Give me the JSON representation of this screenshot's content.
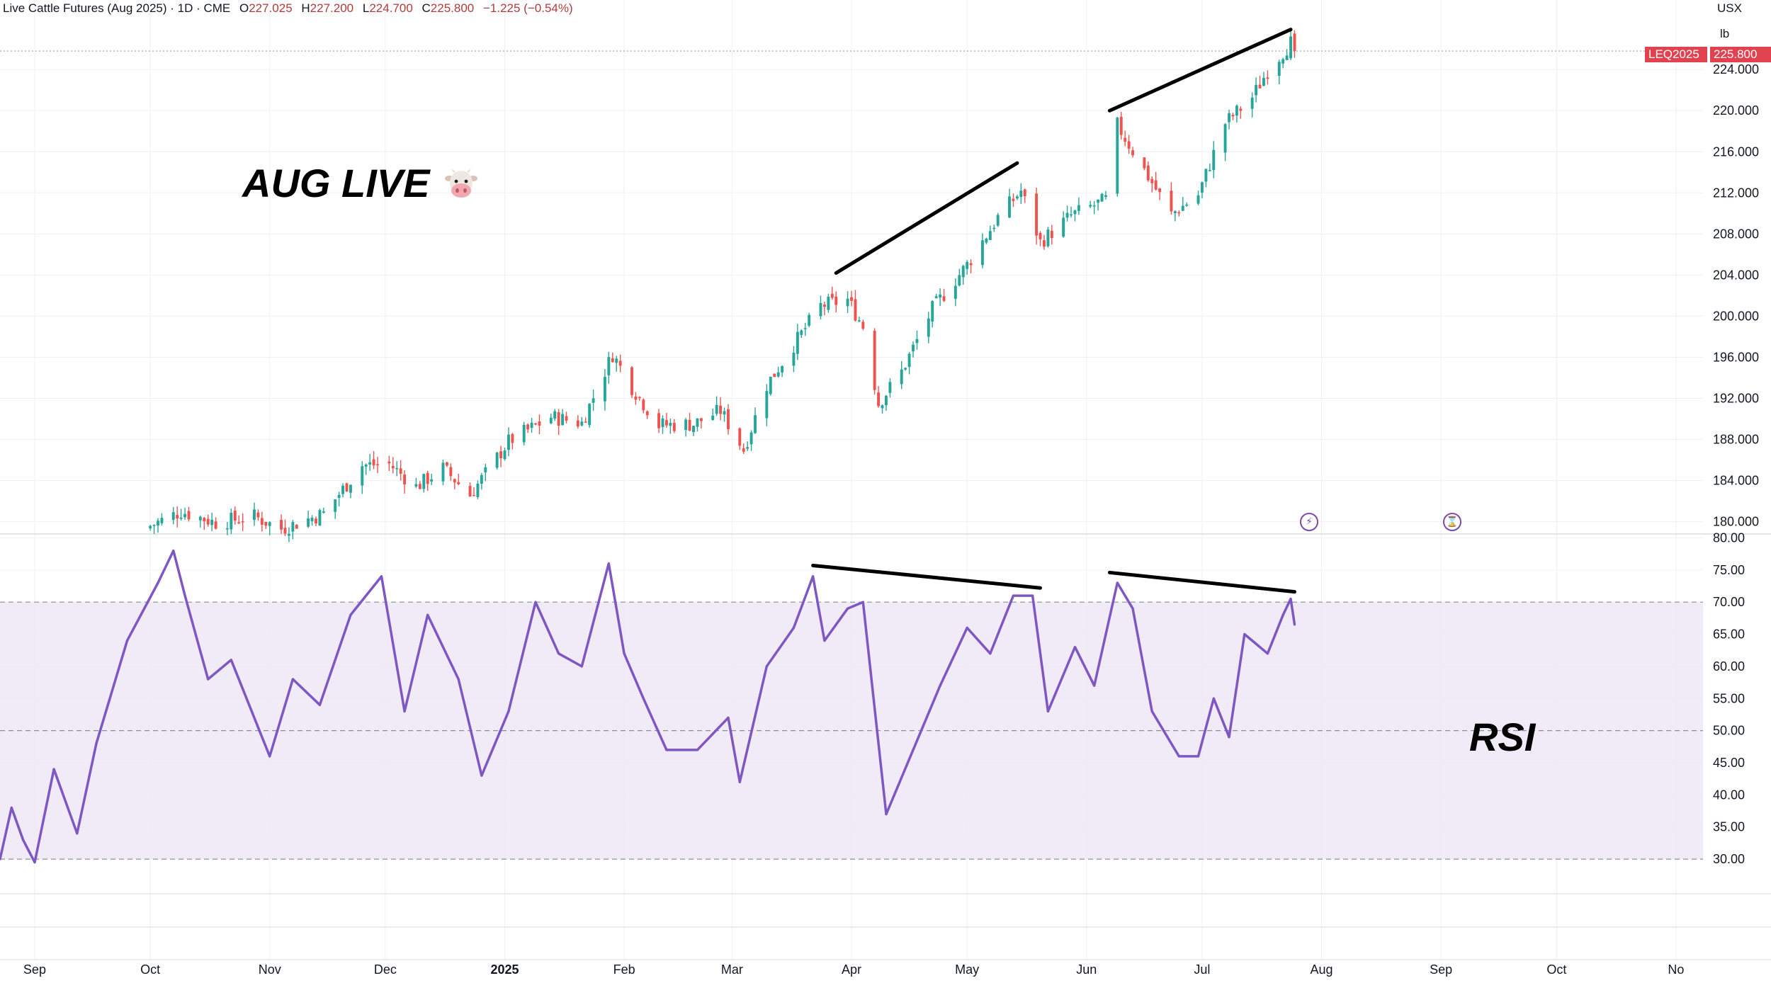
{
  "header": {
    "symbol_title": "Live Cattle Futures (Aug 2025) · 1D · CME",
    "open_label": "O",
    "open": "227.025",
    "high_label": "H",
    "high": "227.200",
    "low_label": "L",
    "low": "224.700",
    "close_label": "C",
    "close": "225.800",
    "change": "−1.225 (−0.54%)"
  },
  "currency": "USX",
  "unit": "lb",
  "price_badge": {
    "symbol": "LEQ2025",
    "value": "225.800",
    "color": "#e0434f"
  },
  "annotations": {
    "title": "AUG LIVE",
    "title_icon": "cow-face-icon",
    "rsi_label": "RSI"
  },
  "colors": {
    "up": "#26a69a",
    "down": "#ef5350",
    "rsi_line": "#7e57c2",
    "rsi_band": "#ede7f6"
  },
  "chart_data": [
    {
      "type": "candlestick",
      "title": "",
      "x_axis": {
        "ticks": [
          "Sep",
          "Oct",
          "Nov",
          "Dec",
          "2025",
          "Feb",
          "Mar",
          "Apr",
          "May",
          "Jun",
          "Jul",
          "Aug",
          "Sep",
          "Oct",
          "No"
        ],
        "range": [
          "2024-08-23",
          "2025-11-08"
        ]
      },
      "y_axis": {
        "ticks": [
          "180.000",
          "184.000",
          "188.000",
          "192.000",
          "196.000",
          "200.000",
          "204.000",
          "208.000",
          "212.000",
          "216.000",
          "220.000",
          "224.000"
        ],
        "range": [
          178.8,
          228.7
        ]
      },
      "last_price": 225.8,
      "close_path": [
        {
          "date": "2024-10-01",
          "close": 179.6
        },
        {
          "date": "2024-10-09",
          "close": 181.0
        },
        {
          "date": "2024-10-18",
          "close": 179.9
        },
        {
          "date": "2024-10-28",
          "close": 180.5
        },
        {
          "date": "2024-11-04",
          "close": 179.3
        },
        {
          "date": "2024-11-15",
          "close": 180.8
        },
        {
          "date": "2024-11-25",
          "close": 185.5
        },
        {
          "date": "2024-12-02",
          "close": 185.6
        },
        {
          "date": "2024-12-09",
          "close": 183.4
        },
        {
          "date": "2024-12-16",
          "close": 185.2
        },
        {
          "date": "2024-12-23",
          "close": 182.6
        },
        {
          "date": "2025-01-02",
          "close": 187.8
        },
        {
          "date": "2025-01-13",
          "close": 190.2
        },
        {
          "date": "2025-01-21",
          "close": 189.6
        },
        {
          "date": "2025-01-29",
          "close": 196.3
        },
        {
          "date": "2025-02-03",
          "close": 193.1
        },
        {
          "date": "2025-02-10",
          "close": 189.4
        },
        {
          "date": "2025-02-19",
          "close": 189.5
        },
        {
          "date": "2025-02-26",
          "close": 190.8
        },
        {
          "date": "2025-03-04",
          "close": 187.0
        },
        {
          "date": "2025-03-10",
          "close": 193.3
        },
        {
          "date": "2025-03-17",
          "close": 197.2
        },
        {
          "date": "2025-03-24",
          "close": 201.0
        },
        {
          "date": "2025-03-31",
          "close": 201.6
        },
        {
          "date": "2025-04-04",
          "close": 199.0
        },
        {
          "date": "2025-04-08",
          "close": 191.5
        },
        {
          "date": "2025-04-14",
          "close": 194.6
        },
        {
          "date": "2025-04-22",
          "close": 200.7
        },
        {
          "date": "2025-05-01",
          "close": 205.0
        },
        {
          "date": "2025-05-09",
          "close": 209.6
        },
        {
          "date": "2025-05-15",
          "close": 212.2
        },
        {
          "date": "2025-05-20",
          "close": 207.2
        },
        {
          "date": "2025-05-28",
          "close": 209.8
        },
        {
          "date": "2025-06-06",
          "close": 211.3
        },
        {
          "date": "2025-06-09",
          "close": 218.6
        },
        {
          "date": "2025-06-16",
          "close": 214.2
        },
        {
          "date": "2025-06-23",
          "close": 209.9
        },
        {
          "date": "2025-06-30",
          "close": 211.8
        },
        {
          "date": "2025-07-07",
          "close": 218.8
        },
        {
          "date": "2025-07-14",
          "close": 221.3
        },
        {
          "date": "2025-07-18",
          "close": 223.9
        },
        {
          "date": "2025-07-24",
          "close": 226.6
        },
        {
          "date": "2025-07-25",
          "close": 225.8
        }
      ],
      "trend_lines": [
        {
          "from": {
            "date": "2025-03-28",
            "price": 204.2
          },
          "to": {
            "date": "2025-05-14",
            "price": 214.9
          }
        },
        {
          "from": {
            "date": "2025-06-07",
            "price": 220.0
          },
          "to": {
            "date": "2025-07-24",
            "price": 227.9
          }
        }
      ]
    },
    {
      "type": "line",
      "title": "",
      "y_axis": {
        "ticks": [
          "30.00",
          "35.00",
          "40.00",
          "45.00",
          "50.00",
          "55.00",
          "60.00",
          "65.00",
          "70.00",
          "75.00",
          "80.00"
        ],
        "range": [
          29.9,
          80.6
        ]
      },
      "bands": {
        "upper": 70,
        "middle": 50,
        "lower": 30
      },
      "series": [
        {
          "points": [
            {
              "date": "2024-08-23",
              "value": 30.0
            },
            {
              "date": "2024-08-26",
              "value": 38.0
            },
            {
              "date": "2024-08-29",
              "value": 33.0
            },
            {
              "date": "2024-09-01",
              "value": 29.5
            },
            {
              "date": "2024-09-06",
              "value": 44.0
            },
            {
              "date": "2024-09-12",
              "value": 34.0
            },
            {
              "date": "2024-09-17",
              "value": 48.0
            },
            {
              "date": "2024-09-25",
              "value": 64.0
            },
            {
              "date": "2024-10-03",
              "value": 73.0
            },
            {
              "date": "2024-10-07",
              "value": 78.0
            },
            {
              "date": "2024-10-10",
              "value": 71.0
            },
            {
              "date": "2024-10-16",
              "value": 58.0
            },
            {
              "date": "2024-10-22",
              "value": 61.0
            },
            {
              "date": "2024-11-01",
              "value": 46.0
            },
            {
              "date": "2024-11-07",
              "value": 58.0
            },
            {
              "date": "2024-11-14",
              "value": 54.0
            },
            {
              "date": "2024-11-22",
              "value": 68.0
            },
            {
              "date": "2024-11-30",
              "value": 74.0
            },
            {
              "date": "2024-12-06",
              "value": 53.0
            },
            {
              "date": "2024-12-12",
              "value": 68.0
            },
            {
              "date": "2024-12-20",
              "value": 58.0
            },
            {
              "date": "2024-12-26",
              "value": 43.0
            },
            {
              "date": "2025-01-02",
              "value": 53.0
            },
            {
              "date": "2025-01-09",
              "value": 70.0
            },
            {
              "date": "2025-01-15",
              "value": 62.0
            },
            {
              "date": "2025-01-21",
              "value": 60.0
            },
            {
              "date": "2025-01-28",
              "value": 76.0
            },
            {
              "date": "2025-02-01",
              "value": 62.0
            },
            {
              "date": "2025-02-06",
              "value": 55.0
            },
            {
              "date": "2025-02-12",
              "value": 47.0
            },
            {
              "date": "2025-02-20",
              "value": 47.0
            },
            {
              "date": "2025-02-28",
              "value": 52.0
            },
            {
              "date": "2025-03-03",
              "value": 42.0
            },
            {
              "date": "2025-03-10",
              "value": 60.0
            },
            {
              "date": "2025-03-17",
              "value": 66.0
            },
            {
              "date": "2025-03-22",
              "value": 74.0
            },
            {
              "date": "2025-03-25",
              "value": 64.0
            },
            {
              "date": "2025-03-31",
              "value": 69.0
            },
            {
              "date": "2025-04-04",
              "value": 70.0
            },
            {
              "date": "2025-04-10",
              "value": 37.0
            },
            {
              "date": "2025-04-17",
              "value": 47.0
            },
            {
              "date": "2025-04-24",
              "value": 57.0
            },
            {
              "date": "2025-05-01",
              "value": 66.0
            },
            {
              "date": "2025-05-07",
              "value": 62.0
            },
            {
              "date": "2025-05-13",
              "value": 71.0
            },
            {
              "date": "2025-05-18",
              "value": 71.0
            },
            {
              "date": "2025-05-22",
              "value": 53.0
            },
            {
              "date": "2025-05-29",
              "value": 63.0
            },
            {
              "date": "2025-06-03",
              "value": 57.0
            },
            {
              "date": "2025-06-09",
              "value": 73.0
            },
            {
              "date": "2025-06-13",
              "value": 69.0
            },
            {
              "date": "2025-06-18",
              "value": 53.0
            },
            {
              "date": "2025-06-25",
              "value": 46.0
            },
            {
              "date": "2025-06-30",
              "value": 46.0
            },
            {
              "date": "2025-07-04",
              "value": 55.0
            },
            {
              "date": "2025-07-08",
              "value": 49.0
            },
            {
              "date": "2025-07-12",
              "value": 65.0
            },
            {
              "date": "2025-07-18",
              "value": 62.0
            },
            {
              "date": "2025-07-22",
              "value": 68.0
            },
            {
              "date": "2025-07-24",
              "value": 70.5
            },
            {
              "date": "2025-07-25",
              "value": 66.5
            }
          ]
        }
      ],
      "trend_lines": [
        {
          "from": {
            "date": "2025-03-22",
            "value": 75.7
          },
          "to": {
            "date": "2025-05-20",
            "value": 72.2
          }
        },
        {
          "from": {
            "date": "2025-06-07",
            "value": 74.6
          },
          "to": {
            "date": "2025-07-25",
            "value": 71.6
          }
        }
      ]
    }
  ]
}
